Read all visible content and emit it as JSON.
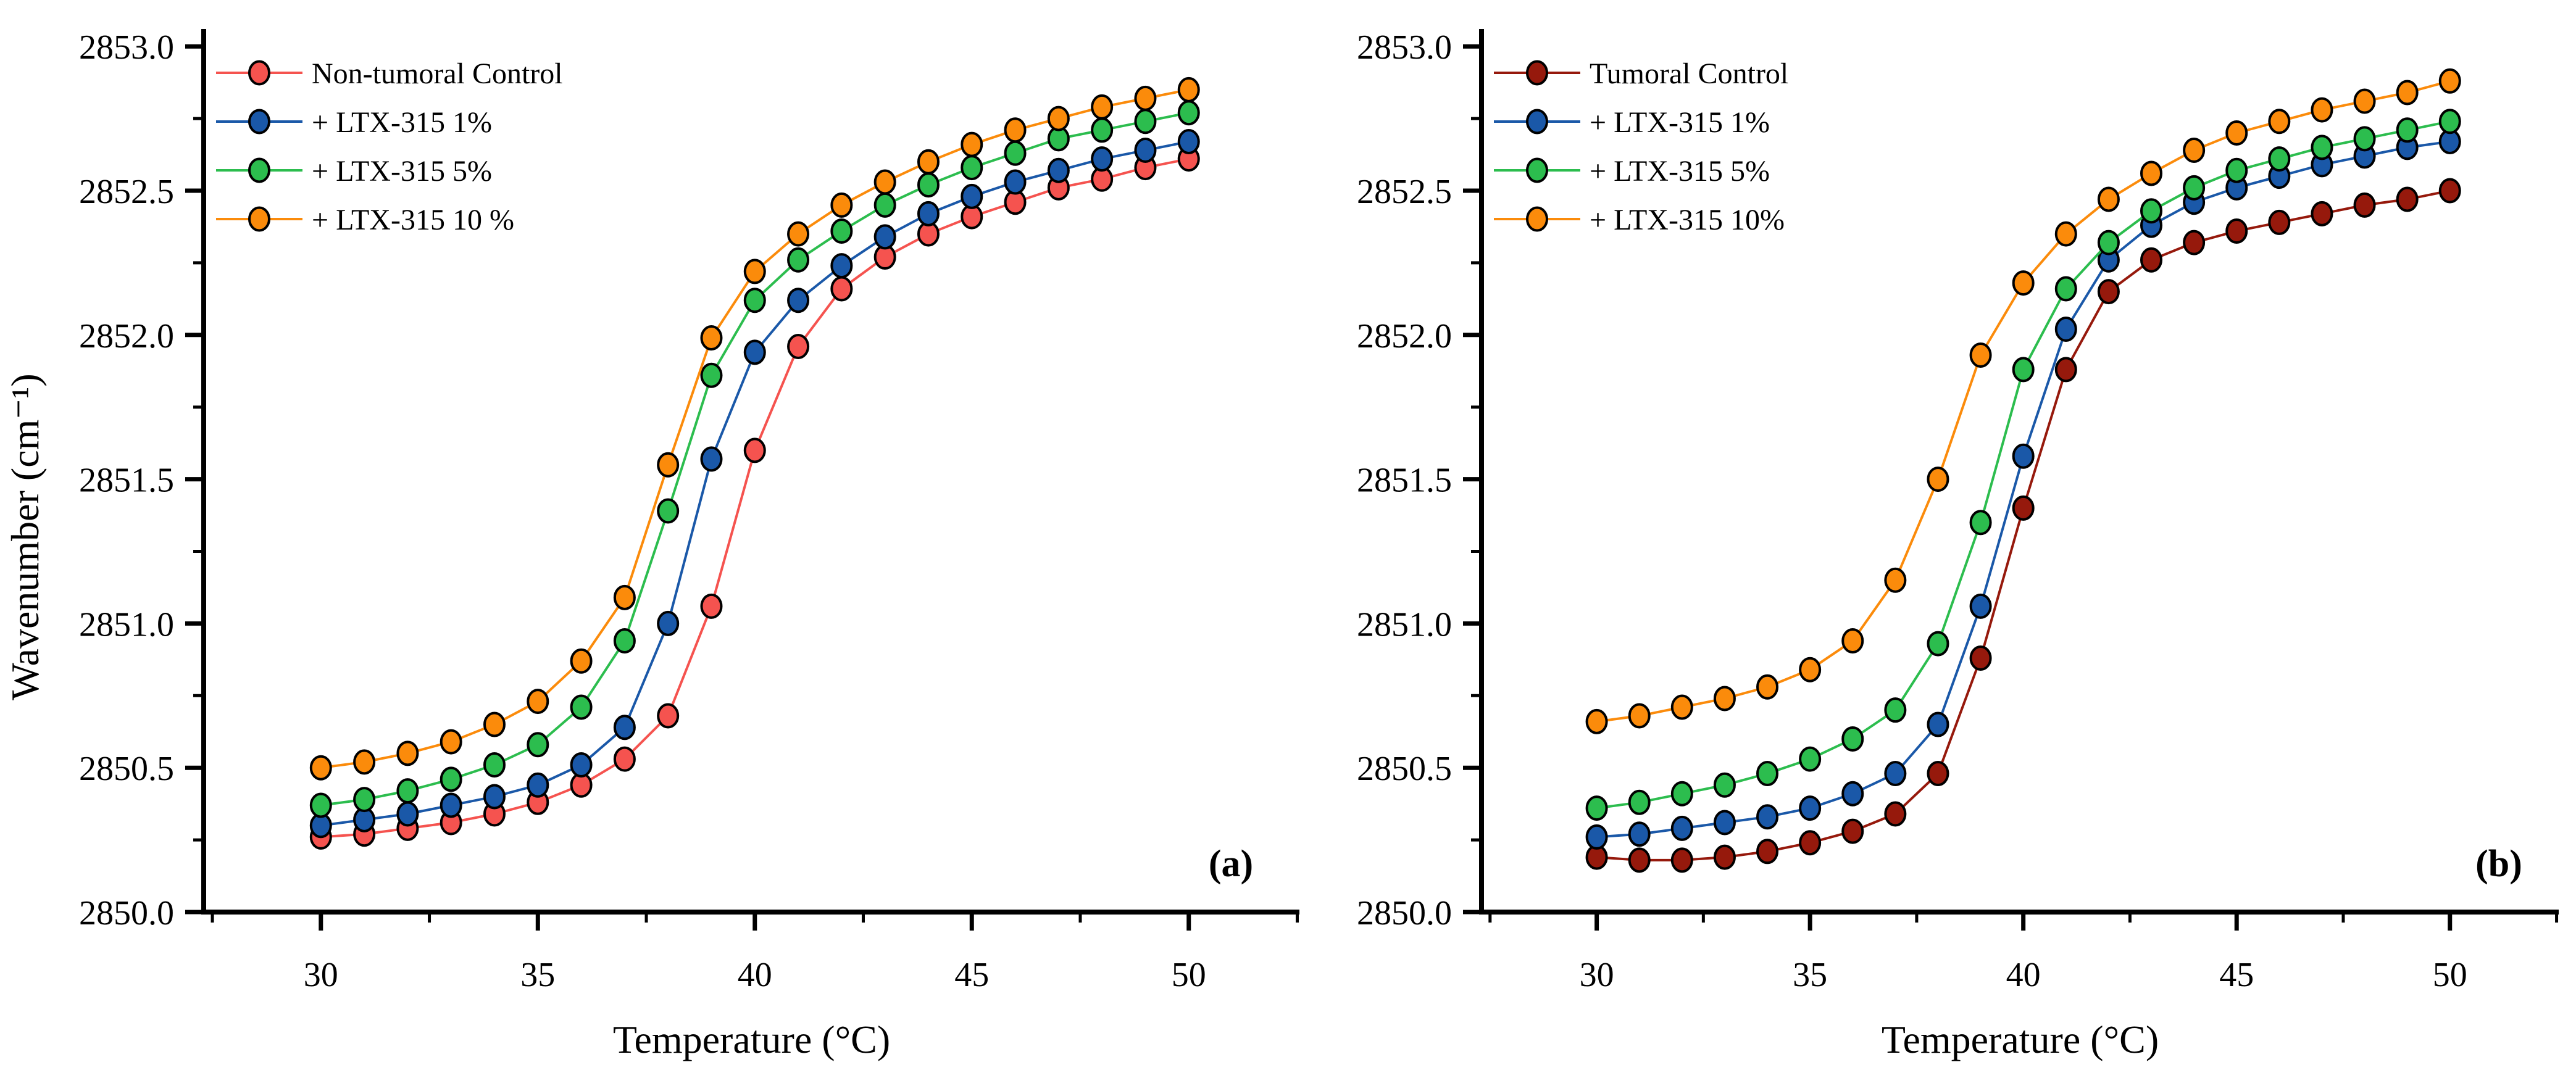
{
  "figure": {
    "background": "#ffffff",
    "panel_labels": [
      "(a)",
      "(b)"
    ]
  },
  "chart_data": [
    {
      "type": "line",
      "panel_label": "(a)",
      "title": "",
      "xlabel": "Temperature (°C)",
      "ylabel": "Wavenumber (cm⁻¹)",
      "xlim": [
        27.3,
        52.55
      ],
      "ylim": [
        2849.95,
        2853.05
      ],
      "x_major_ticks": [
        30,
        35,
        40,
        45,
        50
      ],
      "x_minor_ticks": [
        27.5,
        32.5,
        37.5,
        42.5,
        47.5,
        52.5
      ],
      "y_major_ticks": [
        2850.0,
        2850.5,
        2851.0,
        2851.5,
        2852.0,
        2852.5,
        2853.0
      ],
      "y_major_tick_labels": [
        "2850.0",
        "2850.5",
        "2851.0",
        "2851.5",
        "2852.0",
        "2852.5",
        "2853.0"
      ],
      "y_minor_ticks": [
        2850.25,
        2850.75,
        2851.25,
        2851.75,
        2852.25,
        2852.75
      ],
      "grid": false,
      "legend_position": "top-left",
      "x": [
        30,
        31,
        32,
        33,
        34,
        35,
        36,
        37,
        38,
        39,
        40,
        41,
        42,
        43,
        44,
        45,
        46,
        47,
        48,
        49,
        50
      ],
      "series": [
        {
          "name": "Non-tumoral Control",
          "color": "#F5534F",
          "values": [
            2850.26,
            2850.27,
            2850.29,
            2850.31,
            2850.34,
            2850.38,
            2850.44,
            2850.53,
            2850.68,
            2851.06,
            2851.6,
            2851.96,
            2852.16,
            2852.27,
            2852.35,
            2852.41,
            2852.46,
            2852.51,
            2852.54,
            2852.58,
            2852.61
          ]
        },
        {
          "name": "+ LTX-315 1%",
          "color": "#1A58A8",
          "values": [
            2850.3,
            2850.32,
            2850.34,
            2850.37,
            2850.4,
            2850.44,
            2850.51,
            2850.64,
            2851.0,
            2851.57,
            2851.94,
            2852.12,
            2852.24,
            2852.34,
            2852.42,
            2852.48,
            2852.53,
            2852.57,
            2852.61,
            2852.64,
            2852.67
          ]
        },
        {
          "name": "+ LTX-315 5%",
          "color": "#2CBD4E",
          "values": [
            2850.37,
            2850.39,
            2850.42,
            2850.46,
            2850.51,
            2850.58,
            2850.71,
            2850.94,
            2851.39,
            2851.86,
            2852.12,
            2852.26,
            2852.36,
            2852.45,
            2852.52,
            2852.58,
            2852.63,
            2852.68,
            2852.71,
            2852.74,
            2852.77
          ]
        },
        {
          "name": "+ LTX-315 10 %",
          "color": "#FB8B0B",
          "values": [
            2850.5,
            2850.52,
            2850.55,
            2850.59,
            2850.65,
            2850.73,
            2850.87,
            2851.09,
            2851.55,
            2851.99,
            2852.22,
            2852.35,
            2852.45,
            2852.53,
            2852.6,
            2852.66,
            2852.71,
            2852.75,
            2852.79,
            2852.82,
            2852.85
          ]
        }
      ]
    },
    {
      "type": "line",
      "panel_label": "(b)",
      "title": "",
      "xlabel": "Temperature (°C)",
      "ylabel": "",
      "xlim": [
        27.3,
        52.55
      ],
      "ylim": [
        2849.95,
        2853.05
      ],
      "x_major_ticks": [
        30,
        35,
        40,
        45,
        50
      ],
      "x_minor_ticks": [
        27.5,
        32.5,
        37.5,
        42.5,
        47.5,
        52.5
      ],
      "y_major_ticks": [
        2850.0,
        2850.5,
        2851.0,
        2851.5,
        2852.0,
        2852.5,
        2853.0
      ],
      "y_major_tick_labels": [
        "2850.0",
        "2850.5",
        "2851.0",
        "2851.5",
        "2852.0",
        "2852.5",
        "2853.0"
      ],
      "y_minor_ticks": [
        2850.25,
        2850.75,
        2851.25,
        2851.75,
        2852.25,
        2852.75
      ],
      "grid": false,
      "legend_position": "top-left",
      "x": [
        30,
        31,
        32,
        33,
        34,
        35,
        36,
        37,
        38,
        39,
        40,
        41,
        42,
        43,
        44,
        45,
        46,
        47,
        48,
        49,
        50
      ],
      "series": [
        {
          "name": "Tumoral Control",
          "color": "#96190C",
          "values": [
            2850.19,
            2850.18,
            2850.18,
            2850.19,
            2850.21,
            2850.24,
            2850.28,
            2850.34,
            2850.48,
            2850.88,
            2851.4,
            2851.88,
            2852.15,
            2852.26,
            2852.32,
            2852.36,
            2852.39,
            2852.42,
            2852.45,
            2852.47,
            2852.5
          ]
        },
        {
          "name": "+ LTX-315 1%",
          "color": "#1A58A8",
          "values": [
            2850.26,
            2850.27,
            2850.29,
            2850.31,
            2850.33,
            2850.36,
            2850.41,
            2850.48,
            2850.65,
            2851.06,
            2851.58,
            2852.02,
            2852.26,
            2852.38,
            2852.46,
            2852.51,
            2852.55,
            2852.59,
            2852.62,
            2852.65,
            2852.67
          ]
        },
        {
          "name": "+ LTX-315 5%",
          "color": "#2CBD4E",
          "values": [
            2850.36,
            2850.38,
            2850.41,
            2850.44,
            2850.48,
            2850.53,
            2850.6,
            2850.7,
            2850.93,
            2851.35,
            2851.88,
            2852.16,
            2852.32,
            2852.43,
            2852.51,
            2852.57,
            2852.61,
            2852.65,
            2852.68,
            2852.71,
            2852.74
          ]
        },
        {
          "name": "+ LTX-315 10%",
          "color": "#FB8B0B",
          "values": [
            2850.66,
            2850.68,
            2850.71,
            2850.74,
            2850.78,
            2850.84,
            2850.94,
            2851.15,
            2851.5,
            2851.93,
            2852.18,
            2852.35,
            2852.47,
            2852.56,
            2852.64,
            2852.7,
            2852.74,
            2852.78,
            2852.81,
            2852.84,
            2852.88
          ]
        }
      ]
    }
  ]
}
